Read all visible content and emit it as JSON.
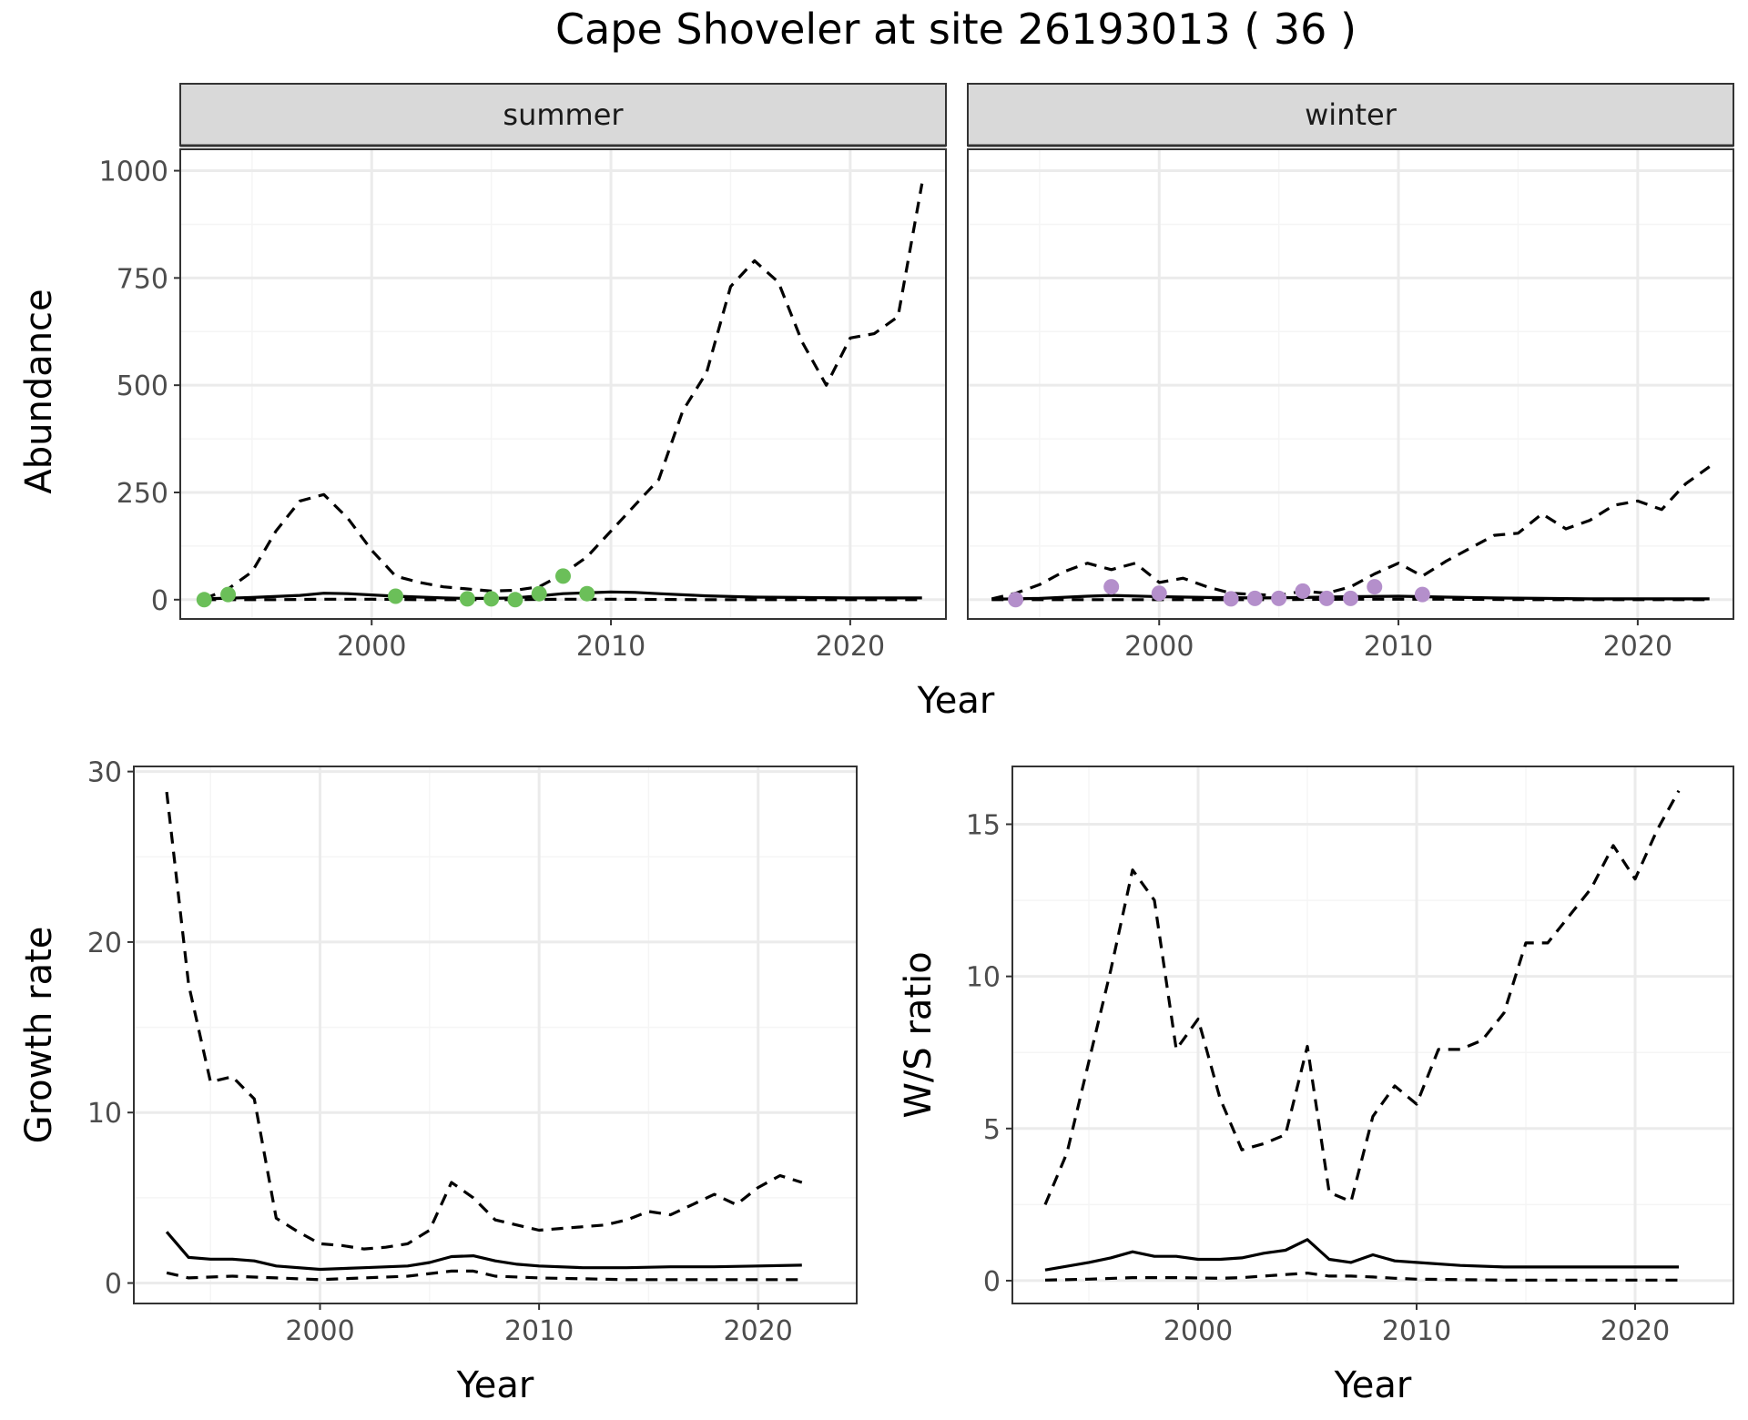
{
  "title": "Cape Shoveler at site 26193013 ( 36 )",
  "colors": {
    "summer_points": "#6BBF59",
    "winter_points": "#B48FCB",
    "line": "#000000",
    "grid_major": "#EBEBEB",
    "grid_minor": "#F5F5F5",
    "strip_bg": "#D9D9D9",
    "panel_border": "#333333"
  },
  "chart_data": [
    {
      "type": "line",
      "facet": "summer",
      "xlabel": "Year",
      "ylabel": "Abundance",
      "xlim": [
        1992,
        2024
      ],
      "ylim": [
        -45,
        1050
      ],
      "x_ticks": [
        2000,
        2010,
        2020
      ],
      "y_ticks": [
        0,
        250,
        500,
        750,
        1000
      ],
      "grid": true,
      "series": [
        {
          "role": "estimate",
          "style": "solid",
          "x": [
            1993,
            1995,
            1997,
            1998,
            1999,
            2001,
            2003,
            2004,
            2005,
            2006,
            2007,
            2008,
            2010,
            2011,
            2012,
            2014,
            2016,
            2018,
            2020,
            2022,
            2023
          ],
          "y": [
            2,
            5,
            10,
            15,
            14,
            8,
            4,
            3,
            3,
            4,
            9,
            14,
            18,
            17,
            14,
            9,
            6,
            5,
            4,
            4,
            4
          ]
        },
        {
          "role": "upper",
          "style": "dashed",
          "x": [
            1993,
            1994,
            1995,
            1996,
            1997,
            1998,
            1999,
            2000,
            2001,
            2002,
            2003,
            2004,
            2005,
            2006,
            2007,
            2008,
            2009,
            2010,
            2011,
            2012,
            2013,
            2014,
            2015,
            2016,
            2017,
            2018,
            2019,
            2020,
            2021,
            2022,
            2023
          ],
          "y": [
            2,
            25,
            65,
            160,
            230,
            245,
            190,
            115,
            55,
            40,
            30,
            25,
            20,
            22,
            30,
            60,
            100,
            160,
            220,
            280,
            440,
            530,
            730,
            790,
            740,
            600,
            500,
            610,
            620,
            660,
            970
          ]
        },
        {
          "role": "lower",
          "style": "dashed",
          "x": [
            1993,
            1996,
            1998,
            2000,
            2002,
            2004,
            2006,
            2008,
            2010,
            2014,
            2018,
            2023
          ],
          "y": [
            0,
            0,
            1,
            1,
            0,
            0,
            0,
            1,
            1,
            0,
            0,
            0
          ]
        }
      ],
      "points": {
        "x": [
          1993,
          1994,
          2001,
          2004,
          2005,
          2006,
          2007,
          2008,
          2009
        ],
        "y": [
          0,
          12,
          8,
          2,
          2,
          0,
          14,
          55,
          14
        ]
      }
    },
    {
      "type": "line",
      "facet": "winter",
      "xlabel": "Year",
      "ylabel": "Abundance",
      "xlim": [
        1992,
        2024
      ],
      "ylim": [
        -45,
        1050
      ],
      "x_ticks": [
        2000,
        2010,
        2020
      ],
      "y_ticks": [
        0,
        250,
        500,
        750,
        1000
      ],
      "grid": true,
      "series": [
        {
          "role": "estimate",
          "style": "solid",
          "x": [
            1993,
            1995,
            1997,
            1998,
            2000,
            2002,
            2004,
            2006,
            2008,
            2010,
            2012,
            2014,
            2016,
            2018,
            2020,
            2023
          ],
          "y": [
            1,
            3,
            8,
            10,
            7,
            5,
            4,
            5,
            7,
            8,
            6,
            4,
            3,
            2,
            2,
            2
          ]
        },
        {
          "role": "upper",
          "style": "dashed",
          "x": [
            1993,
            1994,
            1995,
            1996,
            1997,
            1998,
            1999,
            2000,
            2001,
            2002,
            2003,
            2004,
            2005,
            2006,
            2007,
            2008,
            2009,
            2010,
            2011,
            2012,
            2013,
            2014,
            2015,
            2016,
            2017,
            2018,
            2019,
            2020,
            2021,
            2022,
            2023
          ],
          "y": [
            2,
            15,
            35,
            65,
            85,
            70,
            85,
            40,
            50,
            30,
            15,
            12,
            10,
            20,
            15,
            30,
            60,
            85,
            55,
            90,
            120,
            150,
            155,
            200,
            165,
            185,
            220,
            230,
            210,
            270,
            310
          ]
        },
        {
          "role": "lower",
          "style": "dashed",
          "x": [
            1993,
            1997,
            2000,
            2004,
            2008,
            2012,
            2016,
            2020,
            2023
          ],
          "y": [
            0,
            0,
            0,
            0,
            1,
            1,
            0,
            0,
            0
          ]
        }
      ],
      "points": {
        "x": [
          1994,
          1998,
          2000,
          2003,
          2004,
          2005,
          2006,
          2007,
          2008,
          2009,
          2011
        ],
        "y": [
          0,
          30,
          15,
          2,
          3,
          3,
          20,
          3,
          3,
          30,
          12
        ]
      }
    },
    {
      "type": "line",
      "xlabel": "Year",
      "ylabel": "Growth rate",
      "xlim": [
        1991.5,
        2024.5
      ],
      "ylim": [
        -1.2,
        30.3
      ],
      "x_ticks": [
        2000,
        2010,
        2020
      ],
      "y_ticks": [
        0,
        10,
        20,
        30
      ],
      "grid": true,
      "series": [
        {
          "role": "estimate",
          "style": "solid",
          "x": [
            1993,
            1994,
            1995,
            1996,
            1997,
            1998,
            2000,
            2002,
            2004,
            2005,
            2006,
            2007,
            2008,
            2009,
            2010,
            2012,
            2014,
            2016,
            2018,
            2020,
            2022
          ],
          "y": [
            3.0,
            1.5,
            1.4,
            1.4,
            1.3,
            1.0,
            0.8,
            0.9,
            1.0,
            1.2,
            1.55,
            1.6,
            1.3,
            1.1,
            1.0,
            0.9,
            0.9,
            0.95,
            0.95,
            1.0,
            1.05
          ]
        },
        {
          "role": "upper",
          "style": "dashed",
          "x": [
            1993,
            1994,
            1995,
            1996,
            1997,
            1998,
            1999,
            2000,
            2001,
            2002,
            2003,
            2004,
            2005,
            2006,
            2007,
            2008,
            2010,
            2012,
            2013,
            2014,
            2015,
            2016,
            2017,
            2018,
            2019,
            2020,
            2021,
            2022
          ],
          "y": [
            28.8,
            17.5,
            11.8,
            12.1,
            10.8,
            3.8,
            3.0,
            2.3,
            2.2,
            2.0,
            2.1,
            2.3,
            3.1,
            5.9,
            5.0,
            3.7,
            3.1,
            3.3,
            3.4,
            3.7,
            4.2,
            4.0,
            4.6,
            5.2,
            4.6,
            5.6,
            6.3,
            5.9
          ]
        },
        {
          "role": "lower",
          "style": "dashed",
          "x": [
            1993,
            1994,
            1996,
            1998,
            2000,
            2002,
            2004,
            2006,
            2007,
            2008,
            2010,
            2014,
            2018,
            2022
          ],
          "y": [
            0.6,
            0.3,
            0.4,
            0.3,
            0.2,
            0.3,
            0.4,
            0.7,
            0.7,
            0.4,
            0.3,
            0.2,
            0.2,
            0.2
          ]
        }
      ]
    },
    {
      "type": "line",
      "xlabel": "Year",
      "ylabel": "W/S ratio",
      "xlim": [
        1991.5,
        2024.5
      ],
      "ylim": [
        -0.75,
        16.9
      ],
      "x_ticks": [
        2000,
        2010,
        2020
      ],
      "y_ticks": [
        0,
        5,
        10,
        15
      ],
      "grid": true,
      "series": [
        {
          "role": "estimate",
          "style": "solid",
          "x": [
            1993,
            1995,
            1996,
            1997,
            1998,
            1999,
            2000,
            2001,
            2002,
            2003,
            2004,
            2005,
            2006,
            2007,
            2008,
            2009,
            2010,
            2012,
            2014,
            2016,
            2018,
            2020,
            2022
          ],
          "y": [
            0.35,
            0.6,
            0.75,
            0.95,
            0.8,
            0.8,
            0.7,
            0.7,
            0.75,
            0.9,
            1.0,
            1.35,
            0.7,
            0.6,
            0.85,
            0.65,
            0.6,
            0.5,
            0.45,
            0.45,
            0.45,
            0.45,
            0.45
          ]
        },
        {
          "role": "upper",
          "style": "dashed",
          "x": [
            1993,
            1994,
            1995,
            1996,
            1997,
            1998,
            1999,
            2000,
            2001,
            2002,
            2003,
            2004,
            2005,
            2006,
            2007,
            2008,
            2009,
            2010,
            2011,
            2012,
            2013,
            2014,
            2015,
            2016,
            2017,
            2018,
            2019,
            2020,
            2021,
            2022
          ],
          "y": [
            2.5,
            4.2,
            7.2,
            10.2,
            13.5,
            12.5,
            7.6,
            8.6,
            6.0,
            4.3,
            4.5,
            4.8,
            7.7,
            2.9,
            2.6,
            5.4,
            6.4,
            5.8,
            7.6,
            7.6,
            7.9,
            8.8,
            11.1,
            11.1,
            12.0,
            12.9,
            14.3,
            13.2,
            14.8,
            16.1
          ]
        },
        {
          "role": "lower",
          "style": "dashed",
          "x": [
            1993,
            1995,
            1997,
            1999,
            2001,
            2002,
            2003,
            2004,
            2005,
            2006,
            2007,
            2008,
            2009,
            2010,
            2014,
            2018,
            2022
          ],
          "y": [
            0.02,
            0.05,
            0.1,
            0.1,
            0.08,
            0.1,
            0.15,
            0.2,
            0.25,
            0.15,
            0.15,
            0.12,
            0.08,
            0.05,
            0.02,
            0.02,
            0.02
          ]
        }
      ]
    }
  ]
}
